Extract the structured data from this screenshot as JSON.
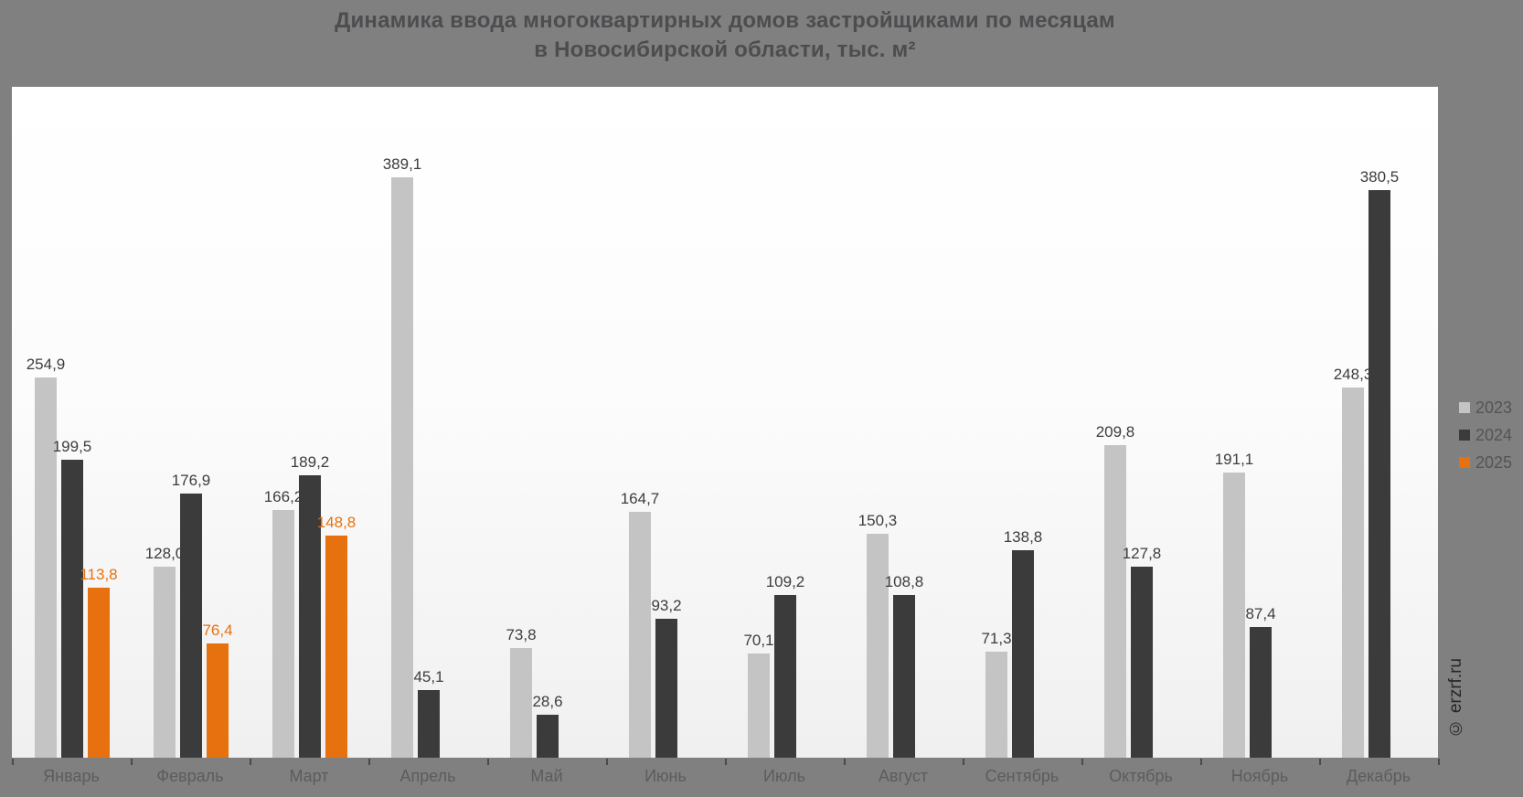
{
  "title": {
    "line1": "Динамика ввода многоквартирных домов застройщиками по месяцам",
    "line2": "в Новосибирской области, тыс. м²"
  },
  "watermark": "© erzrf.ru",
  "legend_position": "right",
  "colors": {
    "background": "#808080",
    "panel_top": "#ffffff",
    "panel_bottom": "#f0f0f0",
    "series_2023": "#c4c4c4",
    "series_2024": "#3b3b3b",
    "series_2025": "#e6710e",
    "value_label": "#3d3d3d",
    "value_label_2025": "#e6710e",
    "month_label": "#5c5c5c",
    "legend_text": "#545454",
    "title_text": "#4d4d50"
  },
  "chart_data": {
    "type": "bar",
    "title": "Динамика ввода многоквартирных домов застройщиками по месяцам в Новосибирской области, тыс. м²",
    "units": "тыс. м²",
    "xlabel": "",
    "ylabel": "",
    "ylim": [
      0,
      420
    ],
    "grid": false,
    "decimal_separator": ",",
    "legend_position": "right",
    "categories": [
      "Январь",
      "Февраль",
      "Март",
      "Апрель",
      "Май",
      "Июнь",
      "Июль",
      "Август",
      "Сентябрь",
      "Октябрь",
      "Ноябрь",
      "Декабрь"
    ],
    "series": [
      {
        "name": "2023",
        "color": "#c4c4c4",
        "label_color": "#3d3d3d",
        "values": [
          254.9,
          128.0,
          166.2,
          389.1,
          73.8,
          164.7,
          70.1,
          150.3,
          71.3,
          209.8,
          191.1,
          248.3
        ]
      },
      {
        "name": "2024",
        "color": "#3b3b3b",
        "label_color": "#3d3d3d",
        "values": [
          199.5,
          176.9,
          189.2,
          45.1,
          28.6,
          93.2,
          109.2,
          108.8,
          138.8,
          127.8,
          87.4,
          380.5
        ]
      },
      {
        "name": "2025",
        "color": "#e6710e",
        "label_color": "#e6710e",
        "values": [
          113.8,
          76.4,
          148.8,
          null,
          null,
          null,
          null,
          null,
          null,
          null,
          null,
          null
        ]
      }
    ]
  }
}
